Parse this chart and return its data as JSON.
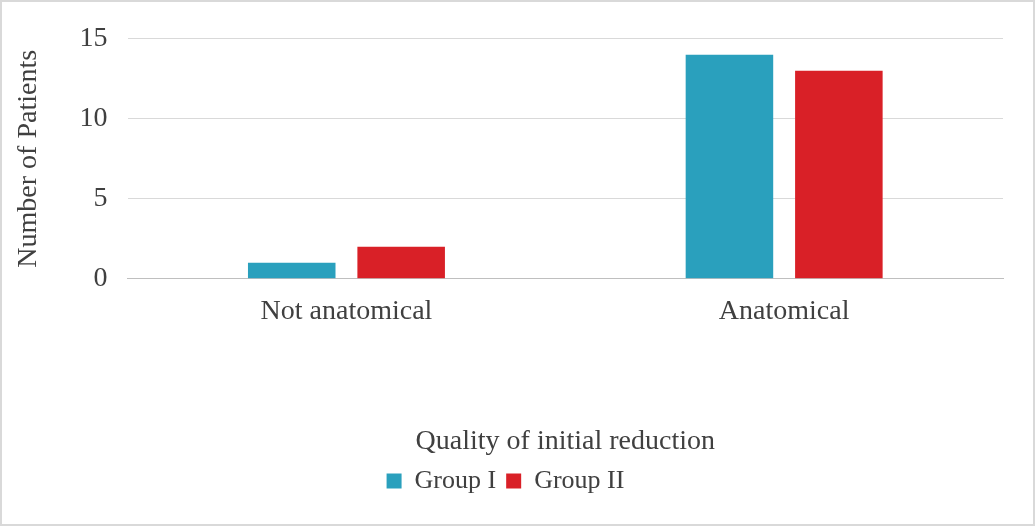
{
  "chart_data": {
    "type": "bar",
    "xlabel": "Quality of initial reduction",
    "ylabel": "Number of Patients",
    "categories": [
      "Not anatomical",
      "Anatomical"
    ],
    "series": [
      {
        "name": "Group I",
        "color": "#2aa0bd",
        "values": [
          1,
          14
        ]
      },
      {
        "name": "Group II",
        "color": "#d92027",
        "values": [
          2,
          13
        ]
      }
    ],
    "ylim": [
      0,
      15
    ],
    "yticks": [
      0,
      5,
      10,
      15
    ],
    "grid": "y",
    "legend": "bottom"
  }
}
